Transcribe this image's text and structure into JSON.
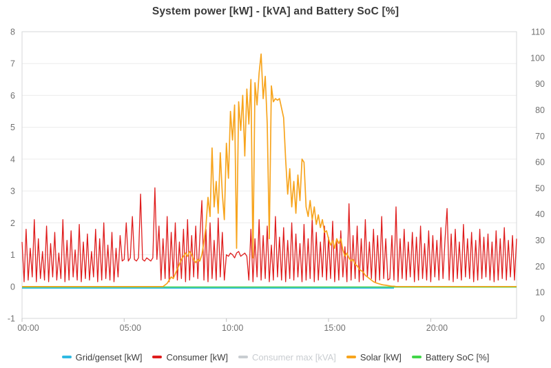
{
  "chart_data": {
    "type": "line",
    "title": "System power [kW] - [kVA] and Battery SoC [%]",
    "grid": true,
    "legend_position": "bottom",
    "x_axis": {
      "unit": "time-of-day",
      "range_hours": [
        0,
        24.2
      ],
      "tick_hours": [
        0,
        5,
        10,
        15,
        20
      ],
      "tick_labels": [
        "00:00",
        "05:00",
        "10:00",
        "15:00",
        "20:00"
      ]
    },
    "y_left": {
      "min": -1,
      "max": 8,
      "tick_values": [
        -1,
        0,
        1,
        2,
        3,
        4,
        5,
        6,
        7,
        8
      ]
    },
    "y_right": {
      "min": 0,
      "max": 110,
      "tick_values": [
        0,
        10,
        20,
        30,
        40,
        50,
        60,
        70,
        80,
        90,
        100,
        110
      ]
    },
    "sample_hours": {
      "start": 0,
      "step": 0.1
    },
    "series": [
      {
        "name": "Grid/genset [kW]",
        "color": "#2fb9e2",
        "axis": "left",
        "z": 2,
        "width": 1.6,
        "type": "constant",
        "value": -0.05,
        "from_hour": 0,
        "to_hour": 18.2
      },
      {
        "name": "Consumer [kW]",
        "color": "#df1c1c",
        "axis": "left",
        "z": 3,
        "width": 1.3,
        "values": [
          1.4,
          0.15,
          1.8,
          0.2,
          1.2,
          0.3,
          2.1,
          0.15,
          1.5,
          0.25,
          1.1,
          0.2,
          1.9,
          0.15,
          1.35,
          0.3,
          1.7,
          0.2,
          1.05,
          0.25,
          2.1,
          0.15,
          1.45,
          0.2,
          1.75,
          0.3,
          1.15,
          0.2,
          1.95,
          0.15,
          1.4,
          0.25,
          1.65,
          0.2,
          1.1,
          0.3,
          1.8,
          0.15,
          1.5,
          0.2,
          2.0,
          0.25,
          1.3,
          0.2,
          1.7,
          0.15,
          1.2,
          0.3,
          1.6,
          0.8,
          0.85,
          2.0,
          0.8,
          0.9,
          2.2,
          0.85,
          0.8,
          0.9,
          2.9,
          0.85,
          0.8,
          0.9,
          0.85,
          0.8,
          0.9,
          3.1,
          0.85,
          1.9,
          0.2,
          1.5,
          0.25,
          2.2,
          0.15,
          1.7,
          0.3,
          2.0,
          0.2,
          1.4,
          0.25,
          1.8,
          0.15,
          2.1,
          0.2,
          1.6,
          0.3,
          1.9,
          0.25,
          1.5,
          2.7,
          0.2,
          1.8,
          0.15,
          2.0,
          0.25,
          1.45,
          0.2,
          2.15,
          0.3,
          1.7,
          0.2,
          1.0,
          0.95,
          1.05,
          1.0,
          0.9,
          1.05,
          1.1,
          0.95,
          1.0,
          1.05,
          0.95,
          0.2,
          1.8,
          0.15,
          1.5,
          0.3,
          2.1,
          0.2,
          1.6,
          0.25,
          1.9,
          0.15,
          1.3,
          0.2,
          2.2,
          0.3,
          1.55,
          0.2,
          1.85,
          0.15,
          1.45,
          0.25,
          2.0,
          0.2,
          1.65,
          0.3,
          1.35,
          0.15,
          1.95,
          0.2,
          1.5,
          0.25,
          2.15,
          0.15,
          1.7,
          0.2,
          1.4,
          0.3,
          1.9,
          0.2,
          1.55,
          0.25,
          2.05,
          0.15,
          1.45,
          0.2,
          1.75,
          0.3,
          1.25,
          0.15,
          2.6,
          0.2,
          1.6,
          0.25,
          1.9,
          0.15,
          1.5,
          0.2,
          2.1,
          0.3,
          1.4,
          0.25,
          1.8,
          0.15,
          1.6,
          0.2,
          2.2,
          0.25,
          1.5,
          0.2,
          0.25,
          1.6,
          0.2,
          2.5,
          0.15,
          1.5,
          0.25,
          1.8,
          0.2,
          1.4,
          0.3,
          1.7,
          0.15,
          1.55,
          0.2,
          1.9,
          0.25,
          1.35,
          0.2,
          1.75,
          0.15,
          1.6,
          0.3,
          1.45,
          0.2,
          1.85,
          0.25,
          1.5,
          2.45,
          0.2,
          1.65,
          0.15,
          1.8,
          0.25,
          1.4,
          0.2,
          1.95,
          0.3,
          1.5,
          0.25,
          1.7,
          0.15,
          1.45,
          0.2,
          1.8,
          0.25,
          1.55,
          0.3,
          1.65,
          0.2,
          1.4,
          0.15,
          1.75,
          0.2,
          1.5,
          0.25,
          1.85,
          0.2,
          1.45,
          0.3,
          1.6,
          0.2,
          1.5
        ]
      },
      {
        "name": "Consumer max [kVA]",
        "color": "#c9cdd1",
        "axis": "left",
        "z": 0,
        "width": 1.5,
        "hidden": true,
        "values": []
      },
      {
        "name": "Solar [kW]",
        "color": "#f7a41d",
        "axis": "left",
        "z": 4,
        "width": 1.7,
        "values": [
          0,
          0,
          0,
          0,
          0,
          0,
          0,
          0,
          0,
          0,
          0,
          0,
          0,
          0,
          0,
          0,
          0,
          0,
          0,
          0,
          0,
          0,
          0,
          0,
          0,
          0,
          0,
          0,
          0,
          0,
          0,
          0,
          0,
          0,
          0,
          0,
          0,
          0,
          0,
          0,
          0,
          0,
          0,
          0,
          0,
          0,
          0,
          0,
          0,
          0,
          0,
          0,
          0,
          0,
          0,
          0,
          0,
          0,
          0,
          0,
          0,
          0,
          0,
          0,
          0,
          0,
          0,
          0,
          0,
          0,
          0.05,
          0.1,
          0.2,
          0.3,
          0.25,
          0.4,
          0.55,
          0.7,
          0.85,
          0.95,
          1.05,
          0.95,
          1.1,
          1.0,
          0.85,
          0.75,
          0.85,
          0.8,
          1.0,
          1.4,
          1.9,
          2.8,
          2.2,
          4.35,
          2.5,
          3.3,
          2.3,
          4.2,
          2.9,
          2.1,
          4.5,
          3.4,
          5.5,
          4.6,
          5.7,
          1.2,
          5.8,
          4.9,
          6.0,
          4.1,
          6.2,
          5.1,
          6.5,
          0.9,
          6.4,
          5.7,
          6.7,
          7.3,
          5.9,
          6.6,
          5.1,
          1.5,
          6.3,
          5.8,
          5.9,
          5.85,
          5.9,
          5.6,
          5.3,
          4.0,
          2.9,
          3.7,
          2.5,
          3.3,
          2.3,
          3.5,
          2.7,
          4.0,
          3.9,
          2.5,
          2.2,
          2.7,
          2.1,
          2.5,
          1.95,
          2.25,
          1.85,
          2.1,
          1.7,
          1.75,
          1.5,
          1.3,
          1.45,
          1.2,
          1.5,
          1.35,
          1.5,
          1.15,
          0.95,
          1.05,
          0.9,
          0.8,
          0.85,
          0.7,
          0.65,
          0.55,
          0.5,
          0.45,
          0.35,
          0.3,
          0.25,
          0.2,
          0.15,
          0.12,
          0.1,
          0.08,
          0.06,
          0.05,
          0.04,
          0.03,
          0.02,
          0.01,
          0.01,
          0,
          0,
          0,
          0,
          0,
          0,
          0,
          0,
          0,
          0,
          0,
          0,
          0,
          0,
          0,
          0,
          0,
          0,
          0,
          0,
          0,
          0,
          0,
          0,
          0,
          0,
          0,
          0,
          0,
          0,
          0,
          0,
          0,
          0,
          0,
          0,
          0,
          0,
          0,
          0,
          0,
          0,
          0,
          0,
          0,
          0,
          0,
          0,
          0,
          0,
          0,
          0,
          0,
          0,
          0,
          0,
          0,
          0,
          0,
          0
        ]
      },
      {
        "name": "Battery SoC [%]",
        "color": "#41d648",
        "axis": "right",
        "z": 1,
        "width": 1.6,
        "type": "constant",
        "value": 12,
        "from_hour": 0,
        "to_hour": 24.2
      }
    ],
    "style": {
      "gridline_color": "#ececec",
      "border_color": "#d4d7da",
      "tick_color": "#c0c0c0",
      "label_color": "#717171",
      "title_color": "#3a3a3a",
      "legend_text_color": "#3d3d3d",
      "legend_muted_color": "#c9cdd1"
    }
  }
}
